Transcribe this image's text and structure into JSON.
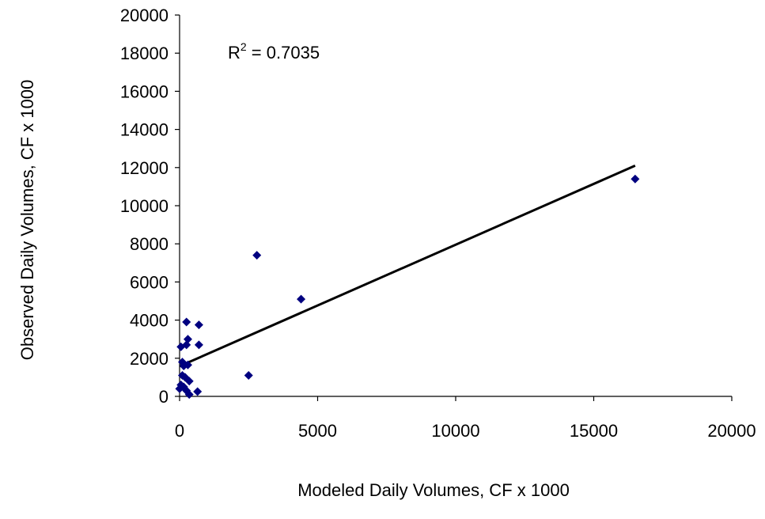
{
  "chart_data": {
    "type": "scatter",
    "title": "",
    "xlabel": "Modeled Daily Volumes, CF x 1000",
    "ylabel": "Observed Daily Volumes, CF x 1000",
    "xlim": [
      0,
      20000
    ],
    "ylim": [
      0,
      20000
    ],
    "x_ticks": [
      0,
      5000,
      10000,
      15000,
      20000
    ],
    "y_ticks": [
      0,
      2000,
      4000,
      6000,
      8000,
      10000,
      12000,
      14000,
      16000,
      18000,
      20000
    ],
    "grid": false,
    "legend": "none",
    "marker_color": "#000080",
    "trendline_color": "#000000",
    "annotation": {
      "base": "R",
      "superscript": "2",
      "value": " = 0.7035"
    },
    "trendline": {
      "x": [
        0,
        16500
      ],
      "y": [
        1580,
        12100
      ]
    },
    "points": [
      {
        "x": 16500,
        "y": 11400
      },
      {
        "x": 2800,
        "y": 7400
      },
      {
        "x": 4400,
        "y": 5100
      },
      {
        "x": 2500,
        "y": 1100
      },
      {
        "x": 250,
        "y": 3900
      },
      {
        "x": 700,
        "y": 3750
      },
      {
        "x": 300,
        "y": 3000
      },
      {
        "x": 700,
        "y": 2700
      },
      {
        "x": 250,
        "y": 2700
      },
      {
        "x": 50,
        "y": 2600
      },
      {
        "x": 100,
        "y": 1800
      },
      {
        "x": 300,
        "y": 1650
      },
      {
        "x": 150,
        "y": 1600
      },
      {
        "x": 200,
        "y": 1000
      },
      {
        "x": 100,
        "y": 1100
      },
      {
        "x": 350,
        "y": 800
      },
      {
        "x": 50,
        "y": 600
      },
      {
        "x": 150,
        "y": 500
      },
      {
        "x": 0,
        "y": 400
      },
      {
        "x": 250,
        "y": 300
      },
      {
        "x": 650,
        "y": 250
      },
      {
        "x": 350,
        "y": 100
      }
    ]
  }
}
